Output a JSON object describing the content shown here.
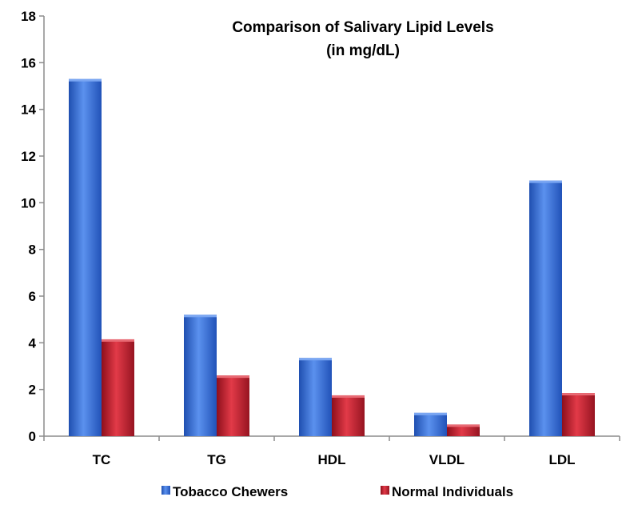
{
  "chart_data": {
    "type": "bar",
    "title": "Comparison of Salivary Lipid Levels",
    "subtitle": "(in mg/dL)",
    "categories": [
      "TC",
      "TG",
      "HDL",
      "VLDL",
      "LDL"
    ],
    "series": [
      {
        "name": "Tobacco Chewers",
        "values": [
          15.3,
          5.2,
          3.35,
          1.0,
          10.95
        ],
        "color": "#3f73d8"
      },
      {
        "name": "Normal Individuals",
        "values": [
          4.15,
          2.6,
          1.75,
          0.5,
          1.85
        ],
        "color": "#c8202e"
      }
    ],
    "ylim": [
      0,
      18
    ],
    "yticks": [
      "0",
      "2",
      "4",
      "6",
      "8",
      "10",
      "12",
      "14",
      "16",
      "18"
    ],
    "grid": false,
    "legend": "bottom"
  }
}
